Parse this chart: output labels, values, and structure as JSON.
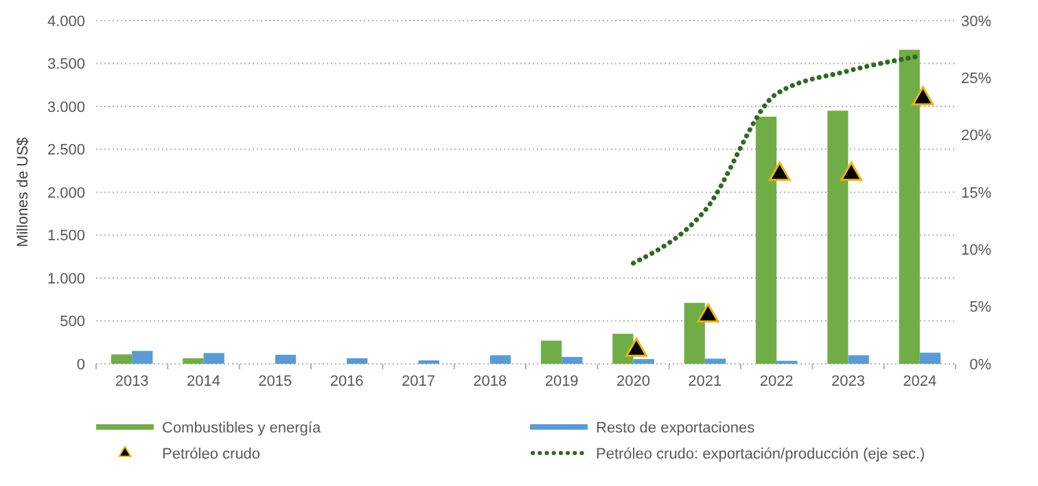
{
  "chart_data": {
    "type": "bar",
    "ylabel": "Millones de US$",
    "categories": [
      "2013",
      "2014",
      "2015",
      "2016",
      "2017",
      "2018",
      "2019",
      "2020",
      "2021",
      "2022",
      "2023",
      "2024"
    ],
    "series": [
      {
        "name": "Combustibles y energía",
        "color": "#70ad47",
        "values": [
          110,
          65,
          0,
          0,
          0,
          0,
          270,
          350,
          710,
          2880,
          2950,
          3660
        ]
      },
      {
        "name": "Resto de exportaciones",
        "color": "#5b9bd5",
        "values": [
          150,
          125,
          105,
          65,
          40,
          100,
          80,
          55,
          60,
          35,
          100,
          130
        ]
      },
      {
        "name": "Petróleo crudo",
        "type": "scatter",
        "marker": "triangle",
        "color": "#000000",
        "values": [
          null,
          null,
          null,
          null,
          null,
          null,
          null,
          160,
          560,
          2210,
          2210,
          3090
        ]
      },
      {
        "name": "Petróleo crudo: exportación/producción (eje sec.)",
        "type": "line",
        "axis": "y2",
        "line_style": "dotted",
        "color": "#2e6b1e",
        "values": [
          null,
          null,
          null,
          null,
          null,
          null,
          null,
          8.8,
          13.4,
          23.6,
          25.6,
          26.9
        ]
      }
    ],
    "ylim": [
      0,
      4000
    ],
    "yticks": [
      0,
      {
        "value": 500,
        "label": "500"
      },
      {
        "value": 1000,
        "label": "1.000"
      },
      {
        "value": 1500,
        "label": "1.500"
      },
      {
        "value": 2000,
        "label": "2.000"
      },
      {
        "value": 2500,
        "label": "2.500"
      },
      {
        "value": 3000,
        "label": "3.000"
      },
      {
        "value": 3500,
        "label": "3.500"
      },
      {
        "value": 4000,
        "label": "4.000"
      }
    ],
    "y2lim": [
      0,
      30
    ],
    "y2ticks": [
      {
        "value": 0,
        "label": "0%"
      },
      {
        "value": 5,
        "label": "5%"
      },
      {
        "value": 10,
        "label": "10%"
      },
      {
        "value": 15,
        "label": "15%"
      },
      {
        "value": 20,
        "label": "20%"
      },
      {
        "value": 25,
        "label": "25%"
      },
      {
        "value": 30,
        "label": "30%"
      }
    ],
    "grid": "y",
    "legend": "bottom"
  }
}
